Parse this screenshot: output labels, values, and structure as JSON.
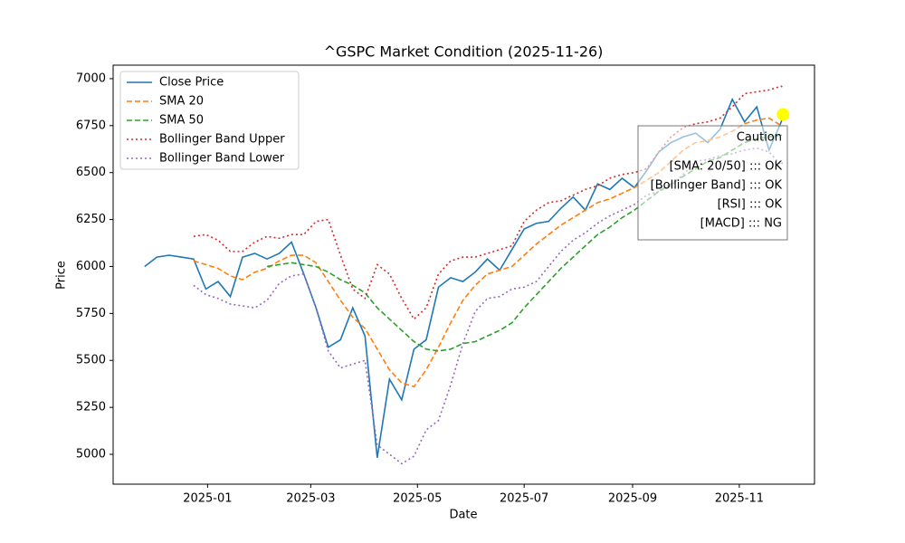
{
  "chart_data": {
    "type": "line",
    "title": "^GSPC Market Condition (2025-11-26)",
    "x_label": "Date",
    "y_label": "Price",
    "x": [
      "2024-11-26",
      "2024-12-03",
      "2024-12-10",
      "2024-12-17",
      "2024-12-24",
      "2024-12-31",
      "2025-01-07",
      "2025-01-14",
      "2025-01-21",
      "2025-01-28",
      "2025-02-04",
      "2025-02-11",
      "2025-02-18",
      "2025-02-25",
      "2025-03-04",
      "2025-03-11",
      "2025-03-18",
      "2025-03-25",
      "2025-04-01",
      "2025-04-08",
      "2025-04-15",
      "2025-04-22",
      "2025-04-29",
      "2025-05-06",
      "2025-05-13",
      "2025-05-20",
      "2025-05-27",
      "2025-06-03",
      "2025-06-10",
      "2025-06-17",
      "2025-06-24",
      "2025-07-01",
      "2025-07-08",
      "2025-07-15",
      "2025-07-22",
      "2025-07-29",
      "2025-08-05",
      "2025-08-12",
      "2025-08-19",
      "2025-08-26",
      "2025-09-02",
      "2025-09-09",
      "2025-09-16",
      "2025-09-23",
      "2025-09-30",
      "2025-10-07",
      "2025-10-14",
      "2025-10-21",
      "2025-10-28",
      "2025-11-04",
      "2025-11-11",
      "2025-11-18",
      "2025-11-25",
      "2025-11-26"
    ],
    "series": [
      {
        "name": "Close Price",
        "color": "#1f77b4",
        "style": "solid",
        "values": [
          6000,
          6050,
          6060,
          6050,
          6040,
          5880,
          5920,
          5840,
          6050,
          6070,
          6040,
          6070,
          6130,
          5960,
          5780,
          5570,
          5610,
          5780,
          5630,
          4982,
          5400,
          5290,
          5560,
          5610,
          5890,
          5940,
          5920,
          5970,
          6040,
          5980,
          6090,
          6200,
          6230,
          6240,
          6310,
          6370,
          6300,
          6440,
          6410,
          6470,
          6420,
          6510,
          6610,
          6660,
          6690,
          6710,
          6660,
          6730,
          6890,
          6770,
          6850,
          6620,
          6770,
          6810
        ]
      },
      {
        "name": "SMA 20",
        "color": "#ff7f0e",
        "style": "dashed",
        "values": [
          null,
          null,
          null,
          null,
          6030,
          6010,
          5990,
          5950,
          5930,
          5970,
          5990,
          6030,
          6060,
          6060,
          6020,
          5920,
          5820,
          5730,
          5670,
          5560,
          5450,
          5380,
          5360,
          5450,
          5570,
          5700,
          5820,
          5900,
          5960,
          5980,
          6000,
          6060,
          6120,
          6170,
          6220,
          6260,
          6300,
          6340,
          6360,
          6390,
          6420,
          6460,
          6500,
          6560,
          6620,
          6660,
          6670,
          6690,
          6720,
          6760,
          6780,
          6790,
          6750,
          6750
        ]
      },
      {
        "name": "SMA 50",
        "color": "#2ca02c",
        "style": "dashed",
        "values": [
          null,
          null,
          null,
          null,
          null,
          null,
          null,
          null,
          null,
          null,
          6000,
          6010,
          6020,
          6010,
          6000,
          5970,
          5930,
          5900,
          5860,
          5780,
          5720,
          5660,
          5600,
          5560,
          5550,
          5560,
          5590,
          5600,
          5630,
          5660,
          5700,
          5780,
          5850,
          5920,
          5990,
          6050,
          6110,
          6170,
          6210,
          6260,
          6300,
          6350,
          6400,
          6440,
          6480,
          6520,
          6560,
          6580,
          6620,
          6660,
          6680,
          6690,
          6700,
          6710
        ]
      },
      {
        "name": "Bollinger Band Upper",
        "color": "#d62728",
        "style": "dotted",
        "values": [
          null,
          null,
          null,
          null,
          6160,
          6170,
          6140,
          6080,
          6080,
          6130,
          6160,
          6150,
          6170,
          6170,
          6240,
          6250,
          6060,
          5880,
          5830,
          6010,
          5960,
          5830,
          5720,
          5780,
          5960,
          6030,
          6050,
          6050,
          6070,
          6090,
          6110,
          6240,
          6300,
          6340,
          6350,
          6380,
          6410,
          6430,
          6470,
          6490,
          6500,
          6520,
          6610,
          6690,
          6740,
          6760,
          6770,
          6790,
          6850,
          6920,
          6930,
          6940,
          6960,
          6950
        ]
      },
      {
        "name": "Bollinger Band Lower",
        "color": "#9467bd",
        "style": "dotted",
        "values": [
          null,
          null,
          null,
          null,
          5900,
          5850,
          5830,
          5800,
          5790,
          5780,
          5820,
          5910,
          5950,
          5960,
          5780,
          5550,
          5460,
          5480,
          5500,
          5050,
          5000,
          4950,
          4990,
          5130,
          5180,
          5370,
          5590,
          5760,
          5830,
          5840,
          5880,
          5890,
          5920,
          6000,
          6080,
          6140,
          6180,
          6230,
          6270,
          6300,
          6330,
          6380,
          6400,
          6430,
          6490,
          6560,
          6570,
          6590,
          6600,
          6620,
          6630,
          6610,
          6540,
          6560
        ]
      }
    ],
    "last_point_color": "yellow",
    "xlim": [
      "2024-11-08",
      "2025-12-14"
    ],
    "xticks": [
      {
        "value": "2025-01-01",
        "label": "2025-01"
      },
      {
        "value": "2025-03-01",
        "label": "2025-03"
      },
      {
        "value": "2025-05-01",
        "label": "2025-05"
      },
      {
        "value": "2025-07-01",
        "label": "2025-07"
      },
      {
        "value": "2025-09-01",
        "label": "2025-09"
      },
      {
        "value": "2025-11-01",
        "label": "2025-11"
      }
    ],
    "ylim": [
      4841,
      7072
    ],
    "yticks": [
      5000,
      5250,
      5500,
      5750,
      6000,
      6250,
      6500,
      6750,
      7000
    ],
    "grid": false,
    "legend": "upper left",
    "annotation": {
      "title": "Caution",
      "lines": [
        "[SMA: 20/50] ::: OK",
        "[Bollinger Band] ::: OK",
        "[RSI] ::: OK",
        "[MACD] ::: NG"
      ]
    }
  }
}
